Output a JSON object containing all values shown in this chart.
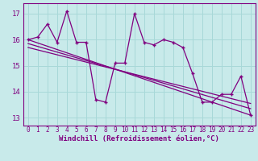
{
  "x": [
    0,
    1,
    2,
    3,
    4,
    5,
    6,
    7,
    8,
    9,
    10,
    11,
    12,
    13,
    14,
    15,
    16,
    17,
    18,
    19,
    20,
    21,
    22,
    23
  ],
  "windchill": [
    16.0,
    16.1,
    16.6,
    15.9,
    17.1,
    15.9,
    15.9,
    13.7,
    13.6,
    15.1,
    15.1,
    17.0,
    15.9,
    15.8,
    16.0,
    15.9,
    15.7,
    14.7,
    13.6,
    13.6,
    13.9,
    13.9,
    14.6,
    13.1
  ],
  "trend1_x": [
    0,
    23
  ],
  "trend1_y": [
    16.0,
    13.1
  ],
  "trend2_x": [
    0,
    23
  ],
  "trend2_y": [
    15.85,
    13.35
  ],
  "trend3_x": [
    0,
    23
  ],
  "trend3_y": [
    15.7,
    13.55
  ],
  "color": "#800080",
  "bg_color": "#c8eaea",
  "grid_color": "#a8d8d8",
  "xlabel": "Windchill (Refroidissement éolien,°C)",
  "ylim": [
    12.7,
    17.4
  ],
  "xlim": [
    -0.5,
    23.5
  ],
  "yticks": [
    13,
    14,
    15,
    16,
    17
  ],
  "xticks": [
    0,
    1,
    2,
    3,
    4,
    5,
    6,
    7,
    8,
    9,
    10,
    11,
    12,
    13,
    14,
    15,
    16,
    17,
    18,
    19,
    20,
    21,
    22,
    23
  ]
}
